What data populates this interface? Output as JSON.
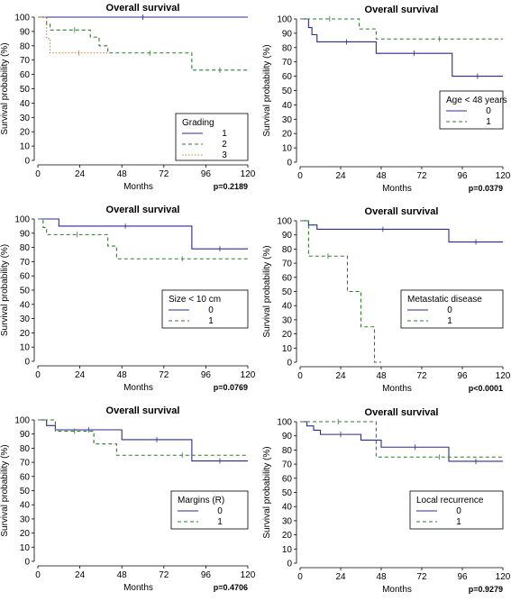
{
  "chart_data": [
    {
      "type": "line",
      "title": "Overall survival",
      "xlabel": "Months",
      "ylabel": "Survival probability (%)",
      "xlim": [
        0,
        120
      ],
      "ylim": [
        0,
        100
      ],
      "x_ticks": [
        0,
        24,
        48,
        72,
        96,
        120
      ],
      "y_ticks": [
        0,
        10,
        20,
        30,
        40,
        50,
        60,
        70,
        80,
        90,
        100
      ],
      "step": true,
      "censor_ticks": true,
      "legend": {
        "title": "Grading",
        "position": "bottom-right"
      },
      "p_value": "p=0.2189",
      "series": [
        {
          "name": "1",
          "color": "#2b2b8c",
          "dash": "solid",
          "x": [
            0,
            120
          ],
          "y": [
            100,
            100
          ]
        },
        {
          "name": "2",
          "color": "#2e7d2e",
          "dash": "dashed",
          "x": [
            0,
            5,
            7,
            12,
            30,
            35,
            40,
            88,
            120
          ],
          "y": [
            100,
            95,
            91,
            91,
            86,
            80,
            75,
            63,
            63
          ]
        },
        {
          "name": "3",
          "color": "#e07b20",
          "dash": "dotted",
          "x": [
            0,
            5,
            7,
            40
          ],
          "y": [
            100,
            85,
            75,
            75
          ]
        }
      ]
    },
    {
      "type": "line",
      "title": "Overall survival",
      "xlabel": "Months",
      "ylabel": "Survival probability (%)",
      "xlim": [
        0,
        120
      ],
      "ylim": [
        0,
        100
      ],
      "x_ticks": [
        0,
        24,
        48,
        72,
        96,
        120
      ],
      "y_ticks": [
        0,
        10,
        20,
        30,
        40,
        50,
        60,
        70,
        80,
        90,
        100
      ],
      "step": true,
      "censor_ticks": true,
      "legend": {
        "title": "Age < 48 years",
        "position": "bottom-right"
      },
      "p_value": "p=0.0379",
      "series": [
        {
          "name": "0",
          "color": "#2b2b8c",
          "dash": "solid",
          "x": [
            0,
            5,
            7,
            10,
            45,
            90,
            120
          ],
          "y": [
            100,
            94,
            89,
            84,
            76,
            60,
            60
          ]
        },
        {
          "name": "1",
          "color": "#2e7d2e",
          "dash": "dashed",
          "x": [
            0,
            35,
            45,
            120
          ],
          "y": [
            100,
            93,
            86,
            86
          ]
        }
      ]
    },
    {
      "type": "line",
      "title": "Overall survival",
      "xlabel": "Months",
      "ylabel": "Survival probability (%)",
      "xlim": [
        0,
        120
      ],
      "ylim": [
        0,
        100
      ],
      "x_ticks": [
        0,
        24,
        48,
        72,
        96,
        120
      ],
      "y_ticks": [
        0,
        10,
        20,
        30,
        40,
        50,
        60,
        70,
        80,
        90,
        100
      ],
      "step": true,
      "censor_ticks": true,
      "legend": {
        "title": "Size < 10 cm",
        "position": "bottom-right"
      },
      "p_value": "p=0.0769",
      "series": [
        {
          "name": "0",
          "color": "#2b2b8c",
          "dash": "solid",
          "x": [
            0,
            12,
            88,
            120
          ],
          "y": [
            100,
            95,
            79,
            79
          ]
        },
        {
          "name": "1",
          "color": "#2e7d2e",
          "dash": "dashed",
          "x": [
            0,
            3,
            5,
            40,
            45,
            120
          ],
          "y": [
            100,
            94,
            89,
            81,
            72,
            72
          ]
        }
      ]
    },
    {
      "type": "line",
      "title": "Overall survival",
      "xlabel": "Months",
      "ylabel": "Survival probability (%)",
      "xlim": [
        0,
        120
      ],
      "ylim": [
        0,
        100
      ],
      "x_ticks": [
        0,
        24,
        48,
        72,
        96,
        120
      ],
      "y_ticks": [
        0,
        10,
        20,
        30,
        40,
        50,
        60,
        70,
        80,
        90,
        100
      ],
      "step": true,
      "censor_ticks": true,
      "legend": {
        "title": "Metastatic disease",
        "position": "bottom-right"
      },
      "p_value": "p<0.0001",
      "series": [
        {
          "name": "0",
          "color": "#2b2b8c",
          "dash": "solid",
          "x": [
            0,
            5,
            10,
            88,
            120
          ],
          "y": [
            100,
            97,
            94,
            85,
            85
          ]
        },
        {
          "name": "1",
          "color": "#2e7d2e",
          "dash": "dashed",
          "x": [
            0,
            5,
            28,
            36,
            44,
            48
          ],
          "y": [
            100,
            75,
            50,
            25,
            0,
            0
          ]
        }
      ]
    },
    {
      "type": "line",
      "title": "Overall survival",
      "xlabel": "Months",
      "ylabel": "Survival probability (%)",
      "xlim": [
        0,
        120
      ],
      "ylim": [
        0,
        100
      ],
      "x_ticks": [
        0,
        24,
        48,
        72,
        96,
        120
      ],
      "y_ticks": [
        0,
        10,
        20,
        30,
        40,
        50,
        60,
        70,
        80,
        90,
        100
      ],
      "step": true,
      "censor_ticks": true,
      "legend": {
        "title": "Margins (R)",
        "position": "bottom-right"
      },
      "p_value": "p=0.4706",
      "series": [
        {
          "name": "0",
          "color": "#2b2b8c",
          "dash": "solid",
          "x": [
            0,
            5,
            10,
            48,
            88,
            120
          ],
          "y": [
            100,
            96,
            93,
            86,
            71,
            71
          ]
        },
        {
          "name": "1",
          "color": "#2e7d2e",
          "dash": "dashed",
          "x": [
            0,
            10,
            32,
            45,
            120
          ],
          "y": [
            100,
            92,
            83,
            75,
            75
          ]
        }
      ]
    },
    {
      "type": "line",
      "title": "Overall survival",
      "xlabel": "Months",
      "ylabel": "Survival probability (%)",
      "xlim": [
        0,
        120
      ],
      "ylim": [
        0,
        100
      ],
      "x_ticks": [
        0,
        24,
        48,
        72,
        96,
        120
      ],
      "y_ticks": [
        0,
        10,
        20,
        30,
        40,
        50,
        60,
        70,
        80,
        90,
        100
      ],
      "step": true,
      "censor_ticks": true,
      "legend": {
        "title": "Local recurrence",
        "position": "bottom-right"
      },
      "p_value": "p=0.9279",
      "series": [
        {
          "name": "0",
          "color": "#2b2b8c",
          "dash": "solid",
          "x": [
            0,
            4,
            8,
            12,
            36,
            48,
            88,
            120
          ],
          "y": [
            100,
            97,
            94,
            91,
            87,
            82,
            72,
            72
          ]
        },
        {
          "name": "1",
          "color": "#2e7d2e",
          "dash": "dashed",
          "x": [
            0,
            45,
            120
          ],
          "y": [
            100,
            75,
            75
          ]
        }
      ]
    }
  ]
}
